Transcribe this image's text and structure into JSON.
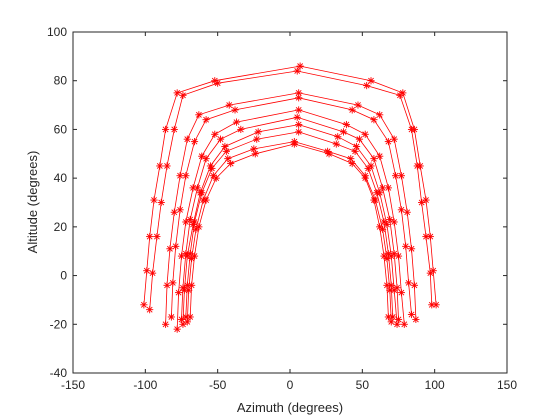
{
  "chart_data": {
    "type": "line",
    "title": "",
    "xlabel": "Azimuth (degrees)",
    "ylabel": "Altitude (degrees)",
    "xlim": [
      -150,
      150
    ],
    "ylim": [
      -40,
      100
    ],
    "xticks": [
      -150,
      -100,
      -50,
      0,
      50,
      100,
      150
    ],
    "yticks": [
      -40,
      -20,
      0,
      20,
      40,
      60,
      80,
      100
    ],
    "grid": false,
    "legend": "none",
    "marker": "asterisk",
    "line_color": "#ff0000",
    "series": [
      {
        "points": [
          [
            -101,
            -12
          ],
          [
            -99,
            2
          ],
          [
            -97,
            16
          ],
          [
            -94,
            31
          ],
          [
            -90,
            45
          ],
          [
            -86,
            60
          ],
          [
            -78,
            75
          ],
          [
            -52,
            80
          ],
          [
            7,
            86
          ],
          [
            56,
            80
          ],
          [
            78,
            75
          ],
          [
            86,
            60
          ],
          [
            90,
            45
          ],
          [
            94,
            31
          ],
          [
            97,
            16
          ],
          [
            99,
            2
          ],
          [
            101,
            -12
          ]
        ]
      },
      {
        "points": [
          [
            -97,
            -14
          ],
          [
            -95,
            1
          ],
          [
            -92,
            16
          ],
          [
            -89,
            30
          ],
          [
            -85,
            45
          ],
          [
            -80,
            60
          ],
          [
            -74,
            74
          ],
          [
            -50,
            79
          ],
          [
            5,
            84
          ],
          [
            53,
            78
          ],
          [
            76,
            74
          ],
          [
            84,
            60
          ],
          [
            88,
            45
          ],
          [
            91,
            30
          ],
          [
            94,
            16
          ],
          [
            97,
            1
          ],
          [
            98,
            -12
          ]
        ]
      },
      {
        "points": [
          [
            -86,
            -20
          ],
          [
            -85,
            -4
          ],
          [
            -83,
            11
          ],
          [
            -80,
            26
          ],
          [
            -76,
            41
          ],
          [
            -71,
            56
          ],
          [
            -63,
            66
          ],
          [
            -42,
            70
          ],
          [
            6,
            75
          ],
          [
            47,
            70
          ],
          [
            62,
            66
          ],
          [
            72,
            56
          ],
          [
            77,
            41
          ],
          [
            81,
            26
          ],
          [
            84,
            11
          ],
          [
            86,
            -4
          ],
          [
            87,
            -18
          ]
        ]
      },
      {
        "points": [
          [
            -82,
            -17
          ],
          [
            -81,
            -3
          ],
          [
            -79,
            12
          ],
          [
            -76,
            27
          ],
          [
            -72,
            41
          ],
          [
            -66,
            55
          ],
          [
            -58,
            64
          ],
          [
            -38,
            68
          ],
          [
            6,
            73
          ],
          [
            43,
            68
          ],
          [
            58,
            64
          ],
          [
            68,
            55
          ],
          [
            73,
            41
          ],
          [
            77,
            27
          ],
          [
            80,
            12
          ],
          [
            82,
            -3
          ],
          [
            84,
            -16
          ]
        ]
      },
      {
        "points": [
          [
            -78,
            -22
          ],
          [
            -77,
            -7
          ],
          [
            -75,
            8
          ],
          [
            -72,
            22
          ],
          [
            -67,
            36
          ],
          [
            -61,
            49
          ],
          [
            -52,
            58
          ],
          [
            -37,
            63
          ],
          [
            6,
            68
          ],
          [
            39,
            62
          ],
          [
            52,
            58
          ],
          [
            62,
            49
          ],
          [
            68,
            36
          ],
          [
            72,
            22
          ],
          [
            75,
            8
          ],
          [
            77,
            -7
          ],
          [
            79,
            -20
          ]
        ]
      },
      {
        "points": [
          [
            -75,
            -18
          ],
          [
            -74,
            -5
          ],
          [
            -72,
            9
          ],
          [
            -69,
            23
          ],
          [
            -64,
            36
          ],
          [
            -58,
            48
          ],
          [
            -48,
            56
          ],
          [
            -34,
            60
          ],
          [
            5,
            65
          ],
          [
            37,
            59
          ],
          [
            48,
            56
          ],
          [
            58,
            48
          ],
          [
            64,
            36
          ],
          [
            69,
            23
          ],
          [
            72,
            9
          ],
          [
            74,
            -5
          ],
          [
            75,
            -18
          ]
        ]
      },
      {
        "points": [
          [
            -74,
            -20
          ],
          [
            -73,
            -6
          ],
          [
            -71,
            8
          ],
          [
            -67,
            21
          ],
          [
            -62,
            34
          ],
          [
            -55,
            45
          ],
          [
            -45,
            53
          ],
          [
            -22,
            59
          ],
          [
            6,
            62
          ],
          [
            33,
            57
          ],
          [
            46,
            53
          ],
          [
            56,
            45
          ],
          [
            62,
            34
          ],
          [
            67,
            21
          ],
          [
            70,
            8
          ],
          [
            72,
            -6
          ],
          [
            74,
            -20
          ]
        ]
      },
      {
        "points": [
          [
            -72,
            -17
          ],
          [
            -71,
            -4
          ],
          [
            -69,
            9
          ],
          [
            -66,
            22
          ],
          [
            -61,
            34
          ],
          [
            -54,
            44
          ],
          [
            -44,
            51
          ],
          [
            -23,
            56
          ],
          [
            6,
            59
          ],
          [
            32,
            54
          ],
          [
            45,
            51
          ],
          [
            54,
            44
          ],
          [
            60,
            34
          ],
          [
            65,
            22
          ],
          [
            68,
            9
          ],
          [
            70,
            -4
          ],
          [
            71,
            -17
          ]
        ]
      },
      {
        "points": [
          [
            -71,
            -19
          ],
          [
            -70,
            -6
          ],
          [
            -68,
            7
          ],
          [
            -65,
            19
          ],
          [
            -60,
            31
          ],
          [
            -53,
            41
          ],
          [
            -43,
            48
          ],
          [
            -25,
            52
          ],
          [
            3,
            55
          ],
          [
            26,
            51
          ],
          [
            42,
            48
          ],
          [
            52,
            41
          ],
          [
            59,
            31
          ],
          [
            64,
            19
          ],
          [
            67,
            7
          ],
          [
            69,
            -6
          ],
          [
            70,
            -19
          ]
        ]
      },
      {
        "points": [
          [
            -69,
            -17
          ],
          [
            -68,
            -4
          ],
          [
            -66,
            8
          ],
          [
            -63,
            20
          ],
          [
            -58,
            31
          ],
          [
            -51,
            40
          ],
          [
            -41,
            46
          ],
          [
            -24,
            50
          ],
          [
            3,
            54
          ],
          [
            27,
            50
          ],
          [
            43,
            46
          ],
          [
            52,
            40
          ],
          [
            58,
            31
          ],
          [
            62,
            20
          ],
          [
            65,
            8
          ],
          [
            67,
            -4
          ],
          [
            68,
            -17
          ]
        ]
      }
    ]
  }
}
